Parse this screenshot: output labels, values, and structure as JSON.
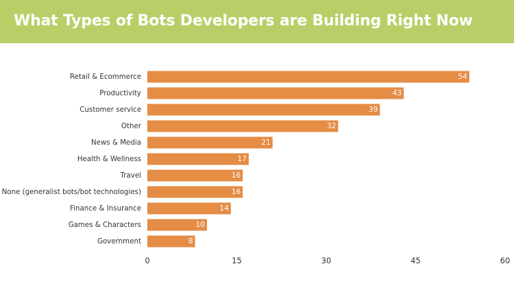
{
  "header": {
    "background_color": "#b8cf68",
    "title_color": "#ffffff"
  },
  "chart_data": {
    "type": "bar",
    "orientation": "horizontal",
    "title": "What Types of Bots Developers are Building Right Now",
    "categories": [
      "Retail & Ecommerce",
      "Productivity",
      "Customer service",
      "Other",
      "News & Media",
      "Health & Wellness",
      "Travel",
      "None (generalist bots/bot technologies)",
      "Finance & Insurance",
      "Games & Characters",
      "Government"
    ],
    "values": [
      54,
      43,
      39,
      32,
      21,
      17,
      16,
      16,
      14,
      10,
      8
    ],
    "value_labels": [
      "54",
      "43",
      "39",
      "32",
      "21",
      "17",
      "16",
      "16",
      "14",
      "10",
      "8"
    ],
    "xlim": [
      0,
      60
    ],
    "x_ticks": [
      "0",
      "15",
      "30",
      "45",
      "60"
    ],
    "grid": false,
    "legend": "none",
    "bar_color": "#e58c45"
  }
}
